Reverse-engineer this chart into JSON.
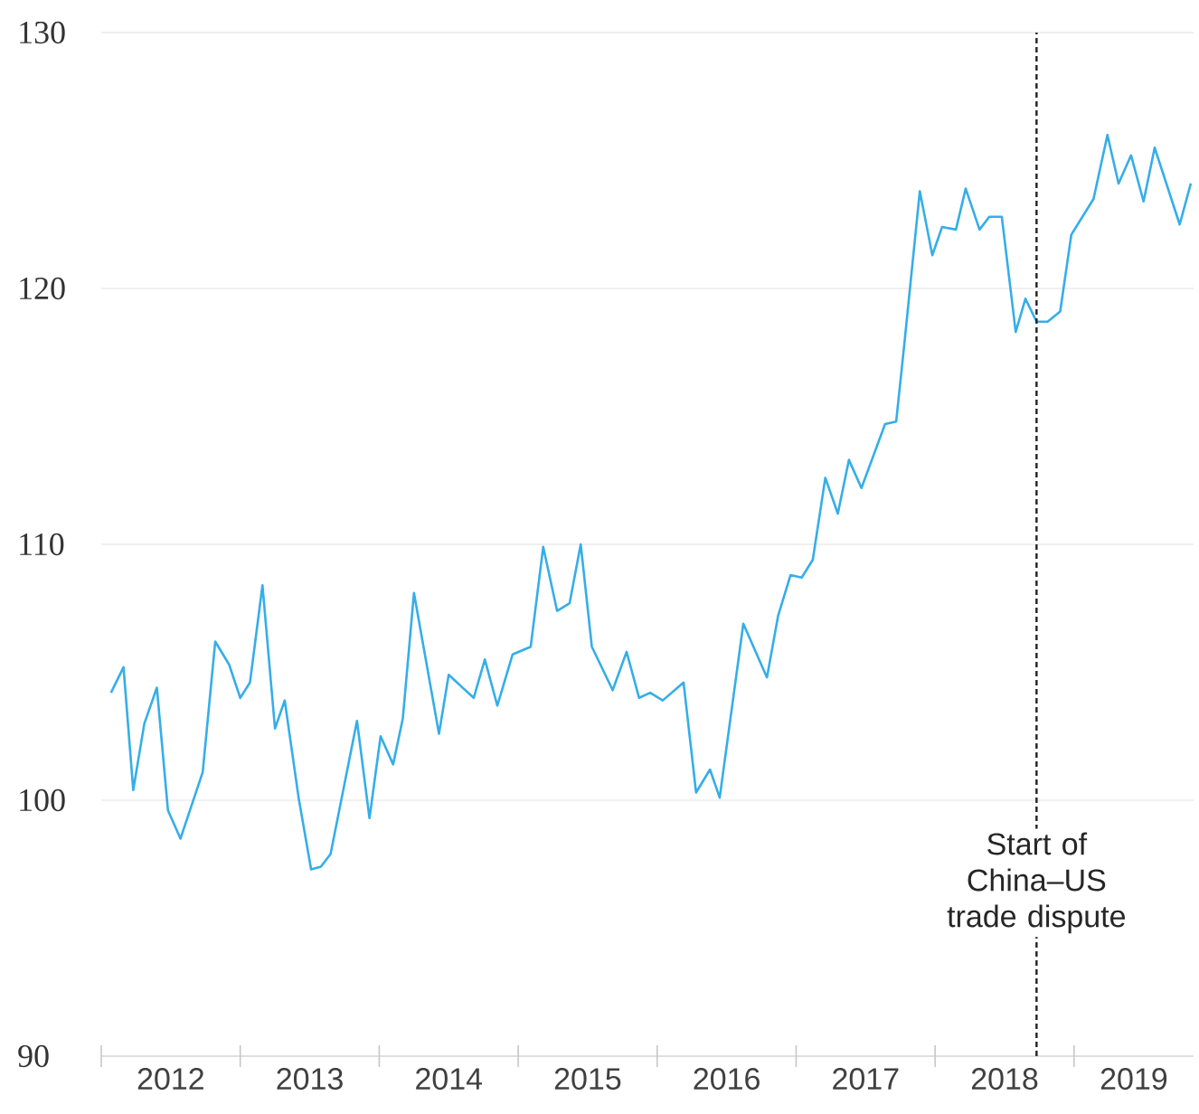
{
  "chart_data": {
    "type": "line",
    "x": [
      2012.07,
      2012.16,
      2012.23,
      2012.31,
      2012.4,
      2012.48,
      2012.57,
      2012.73,
      2012.82,
      2012.92,
      2013.0,
      2013.07,
      2013.16,
      2013.25,
      2013.32,
      2013.42,
      2013.51,
      2013.58,
      2013.65,
      2013.84,
      2013.93,
      2014.01,
      2014.1,
      2014.17,
      2014.25,
      2014.43,
      2014.5,
      2014.68,
      2014.76,
      2014.85,
      2014.96,
      2015.09,
      2015.18,
      2015.28,
      2015.37,
      2015.45,
      2015.53,
      2015.68,
      2015.78,
      2015.87,
      2015.95,
      2016.04,
      2016.19,
      2016.28,
      2016.38,
      2016.45,
      2016.62,
      2016.79,
      2016.87,
      2016.96,
      2017.04,
      2017.12,
      2017.21,
      2017.3,
      2017.38,
      2017.47,
      2017.64,
      2017.72,
      2017.78,
      2017.89,
      2017.98,
      2018.05,
      2018.15,
      2018.22,
      2018.32,
      2018.39,
      2018.48,
      2018.58,
      2018.65,
      2018.73,
      2018.81,
      2018.9,
      2018.98,
      2019.14,
      2019.24,
      2019.32,
      2019.41,
      2019.5,
      2019.58,
      2019.76,
      2019.84
    ],
    "series": [
      {
        "color": "#35aee8",
        "values": [
          104.2,
          105.2,
          100.4,
          103.0,
          104.4,
          99.6,
          98.5,
          101.1,
          106.2,
          105.3,
          104.0,
          104.6,
          108.4,
          102.8,
          103.9,
          100.1,
          97.3,
          97.4,
          97.9,
          103.1,
          99.3,
          102.5,
          101.4,
          103.2,
          108.1,
          102.6,
          104.9,
          104.0,
          105.5,
          103.7,
          105.7,
          106.0,
          109.9,
          107.4,
          107.7,
          110.0,
          106.0,
          104.3,
          105.8,
          104.0,
          104.2,
          103.9,
          104.6,
          100.3,
          101.2,
          100.1,
          106.9,
          104.8,
          107.2,
          108.8,
          108.7,
          109.4,
          112.6,
          111.2,
          113.3,
          112.2,
          114.7,
          114.8,
          117.9,
          123.8,
          121.3,
          122.4,
          122.3,
          123.9,
          122.3,
          122.8,
          122.8,
          118.3,
          119.6,
          118.7,
          118.7,
          119.1,
          122.1,
          123.5,
          126.0,
          124.1,
          125.2,
          123.4,
          125.5,
          122.5,
          124.1
        ]
      }
    ],
    "xlim": [
      2012,
      2019.86
    ],
    "xticks": [
      {
        "value": 2012,
        "label": null
      },
      {
        "value": 2013,
        "label": null
      },
      {
        "value": 2014,
        "label": null
      },
      {
        "value": 2015,
        "label": null
      },
      {
        "value": 2016,
        "label": null
      },
      {
        "value": 2017,
        "label": null
      },
      {
        "value": 2018,
        "label": null
      },
      {
        "value": 2019,
        "label": null
      },
      {
        "value": 2012.5,
        "label": "2012"
      },
      {
        "value": 2013.5,
        "label": "2013"
      },
      {
        "value": 2014.5,
        "label": "2014"
      },
      {
        "value": 2015.5,
        "label": "2015"
      },
      {
        "value": 2016.5,
        "label": "2016"
      },
      {
        "value": 2017.5,
        "label": "2017"
      },
      {
        "value": 2018.5,
        "label": "2018"
      },
      {
        "value": 2019.43,
        "label": "2019"
      }
    ],
    "ylim": [
      90,
      130
    ],
    "yticks": [
      90,
      100,
      110,
      120,
      130
    ],
    "grid": "y",
    "marker": "none",
    "line_style": "solid",
    "ref_lines": [
      {
        "axis": "x",
        "value": 2018.73,
        "label": "Start of China–US trade dispute",
        "color": "#222222",
        "line_style": "dashed"
      }
    ]
  }
}
